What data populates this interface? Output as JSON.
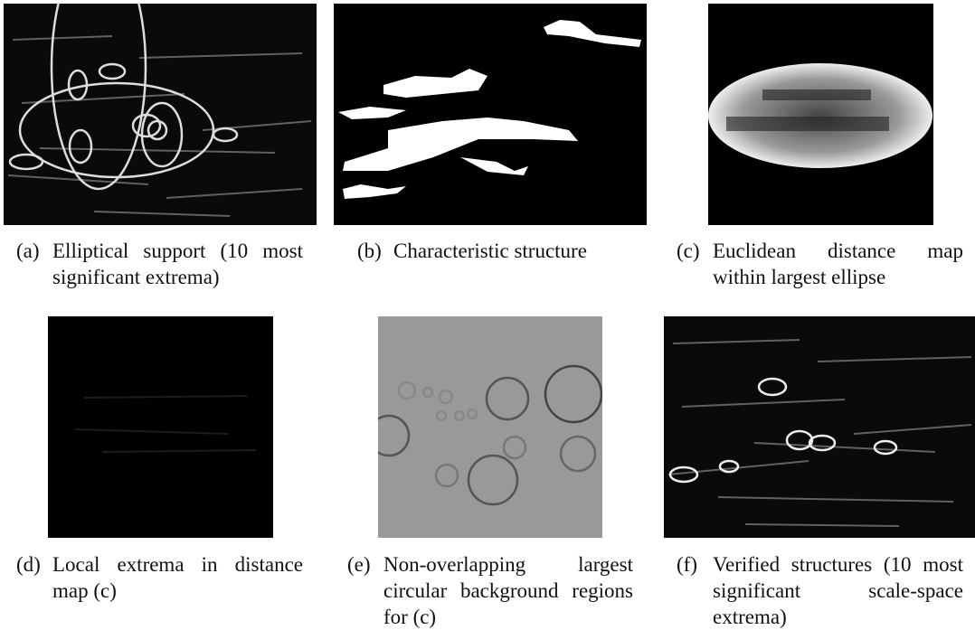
{
  "panels": [
    {
      "label": "(a)",
      "caption": "Elliptical support (10 most significant extrema)"
    },
    {
      "label": "(b)",
      "caption": "Characteristic structure"
    },
    {
      "label": "(c)",
      "caption": "Euclidean distance map within largest ellipse"
    },
    {
      "label": "(d)",
      "caption": "Local extrema in distance map (c)"
    },
    {
      "label": "(e)",
      "caption": "Non-overlapping largest circular background regions for (c)"
    },
    {
      "label": "(f)",
      "caption": "Verified structures (10 most significant scale-space extrema)"
    }
  ]
}
